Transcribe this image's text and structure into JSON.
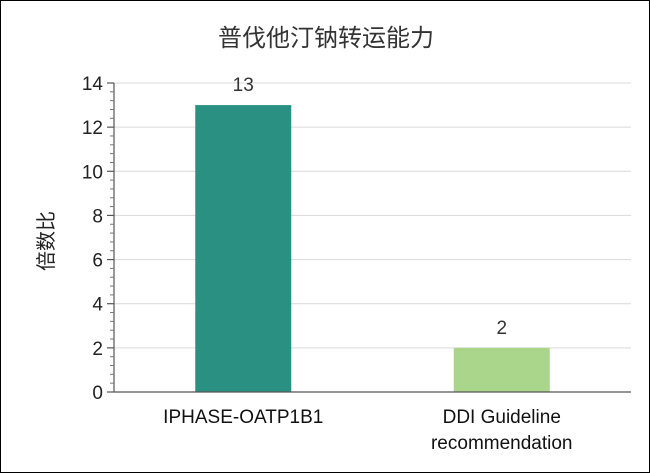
{
  "chart_data": {
    "type": "bar",
    "title": "普伐他汀钠转运能力",
    "xlabel": "",
    "ylabel": "倍数比",
    "categories": [
      [
        "IPHASE-OATP1B1"
      ],
      [
        "DDI Guideline",
        "recommendation"
      ]
    ],
    "values": [
      13,
      2
    ],
    "data_labels": [
      "13",
      "2"
    ],
    "colors": [
      "#2a9182",
      "#a9d68b"
    ],
    "ylim": [
      0,
      14
    ],
    "yticks": [
      0,
      2,
      4,
      6,
      8,
      10,
      12,
      14
    ],
    "ytick_labels": [
      "0",
      "2",
      "4",
      "6",
      "8",
      "10",
      "12",
      "14"
    ],
    "grid": true,
    "legend": "none"
  }
}
